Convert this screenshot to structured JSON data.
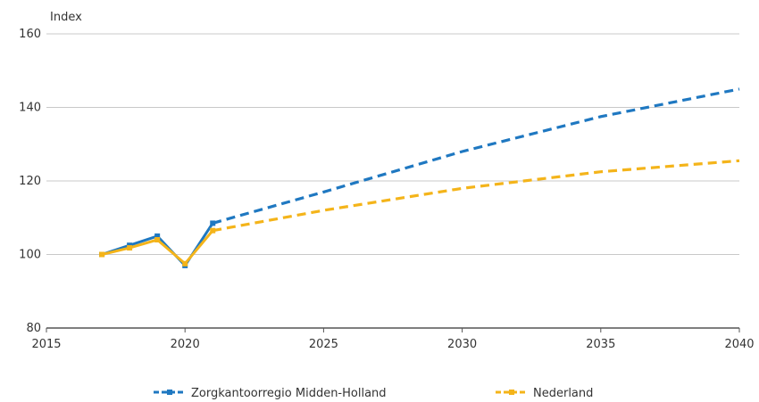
{
  "chart_data": {
    "type": "line",
    "ylabel": "Index",
    "xlim": [
      2015,
      2040
    ],
    "ylim": [
      80,
      160
    ],
    "x_ticks": [
      2015,
      2020,
      2025,
      2030,
      2035,
      2040
    ],
    "y_ticks": [
      80,
      100,
      120,
      140,
      160
    ],
    "grid": "horizontal",
    "legend_position": "bottom",
    "series": [
      {
        "name": "Zorgkantoorregio Midden-Holland",
        "color": "#1f78c1",
        "historical": [
          [
            2017,
            100
          ],
          [
            2018,
            102.5
          ],
          [
            2019,
            105
          ],
          [
            2020,
            97
          ],
          [
            2021,
            108.5
          ]
        ],
        "projection": [
          [
            2021,
            108.5
          ],
          [
            2025,
            117
          ],
          [
            2030,
            128
          ],
          [
            2035,
            137.5
          ],
          [
            2040,
            145
          ]
        ]
      },
      {
        "name": "Nederland",
        "color": "#f4b41a",
        "historical": [
          [
            2017,
            100
          ],
          [
            2018,
            101.8
          ],
          [
            2019,
            104
          ],
          [
            2020,
            97.5
          ],
          [
            2021,
            106.5
          ]
        ],
        "projection": [
          [
            2021,
            106.5
          ],
          [
            2025,
            112
          ],
          [
            2030,
            118
          ],
          [
            2035,
            122.5
          ],
          [
            2040,
            125.5
          ]
        ]
      }
    ]
  }
}
